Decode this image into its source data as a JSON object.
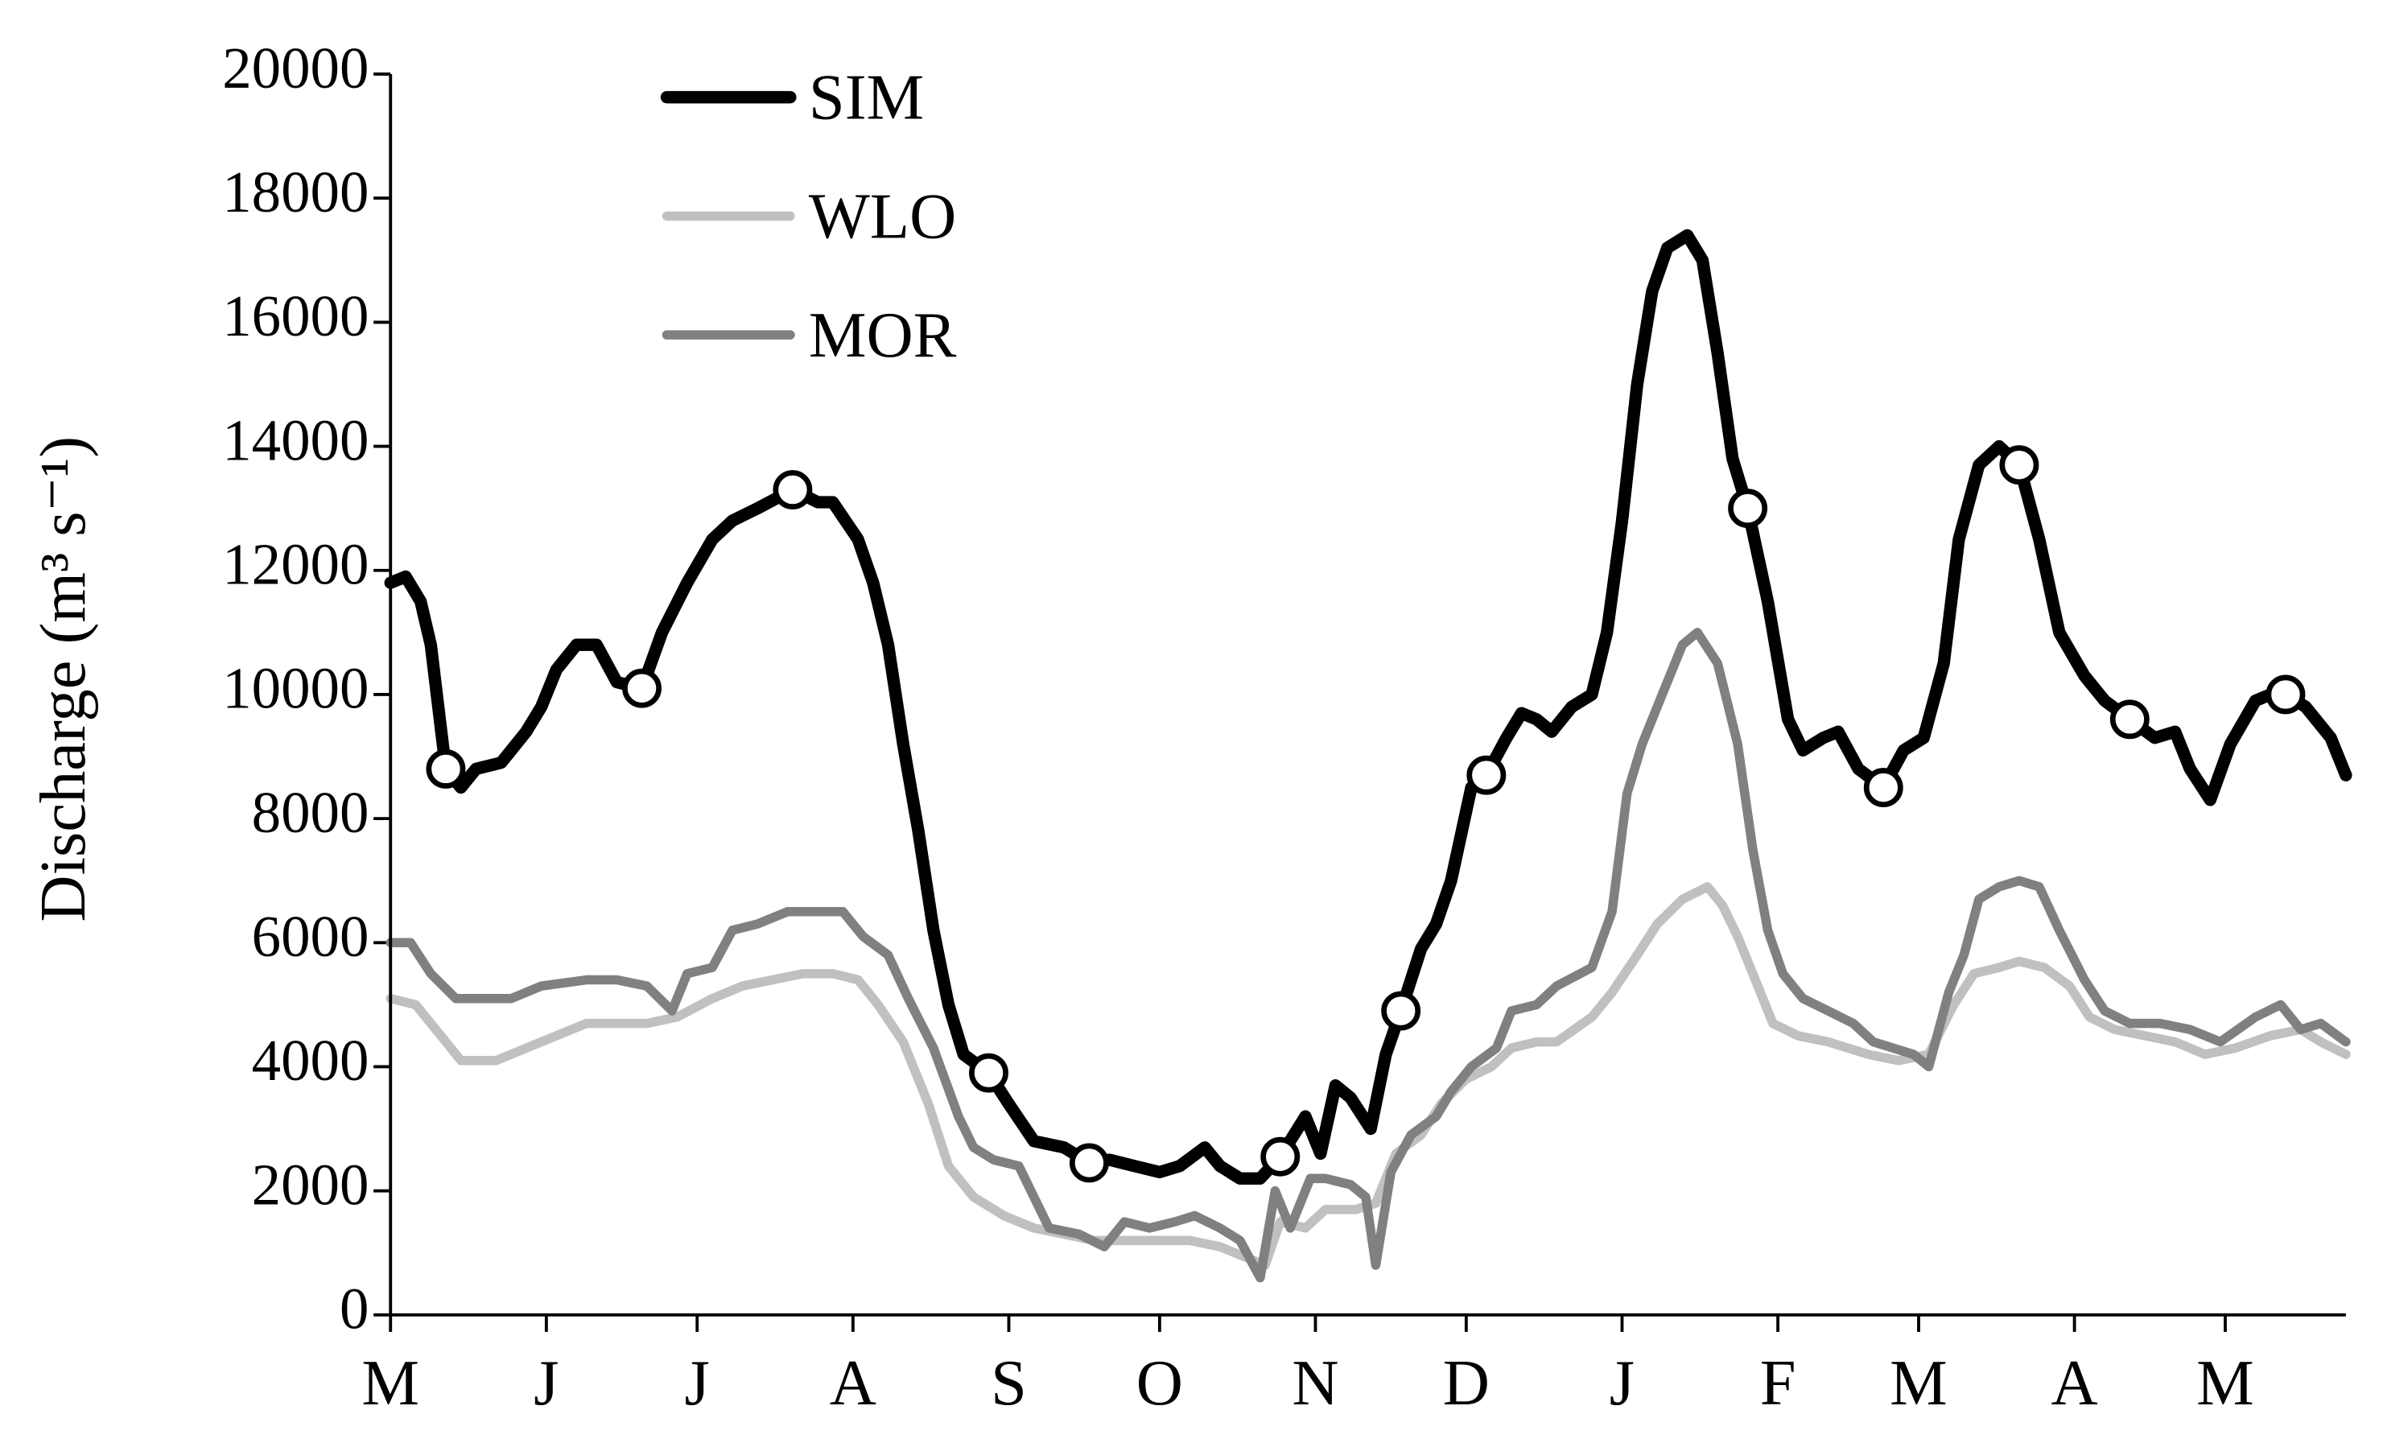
{
  "chart_data": {
    "type": "line",
    "ylabel": "Discharge (m³ s⁻¹)",
    "xlim": [
      0,
      389
    ],
    "xticks": [
      {
        "value": 0,
        "label": "M"
      },
      {
        "value": 31,
        "label": "J"
      },
      {
        "value": 61,
        "label": "J"
      },
      {
        "value": 92,
        "label": "A"
      },
      {
        "value": 123,
        "label": "S"
      },
      {
        "value": 153,
        "label": "O"
      },
      {
        "value": 184,
        "label": "N"
      },
      {
        "value": 214,
        "label": "D"
      },
      {
        "value": 245,
        "label": "J"
      },
      {
        "value": 276,
        "label": "F"
      },
      {
        "value": 304,
        "label": "M"
      },
      {
        "value": 335,
        "label": "A"
      },
      {
        "value": 365,
        "label": "M"
      }
    ],
    "ylim": [
      0,
      20000
    ],
    "yticks": [
      0,
      2000,
      4000,
      6000,
      8000,
      10000,
      12000,
      14000,
      16000,
      18000,
      20000
    ],
    "legend": "upper left",
    "series": [
      {
        "name": "SIM",
        "color": "#000000",
        "x": [
          0,
          3,
          6,
          8,
          11,
          14,
          17,
          22,
          27,
          30,
          33,
          37,
          41,
          45,
          50,
          54,
          59,
          64,
          68,
          73,
          80,
          85,
          88,
          93,
          96,
          99,
          102,
          105,
          108,
          111,
          114,
          119,
          123,
          128,
          134,
          139,
          143,
          148,
          153,
          157,
          162,
          165,
          169,
          173,
          177,
          182,
          185,
          188,
          191,
          195,
          198,
          201,
          205,
          208,
          211,
          215,
          218,
          222,
          225,
          228,
          231,
          235,
          239,
          242,
          245,
          248,
          251,
          254,
          258,
          261,
          264,
          267,
          270,
          274,
          278,
          281,
          285,
          288,
          292,
          297,
          301,
          305,
          309,
          312,
          316,
          320,
          324,
          328,
          332,
          337,
          341,
          346,
          351,
          355,
          358,
          362,
          366,
          371,
          374,
          377,
          381,
          386,
          389
        ],
        "values": [
          11800,
          11900,
          11500,
          10800,
          8800,
          8500,
          8800,
          8900,
          9400,
          9800,
          10400,
          10800,
          10800,
          10200,
          10100,
          11000,
          11800,
          12500,
          12800,
          13000,
          13300,
          13100,
          13100,
          12500,
          11800,
          10800,
          9200,
          7800,
          6200,
          5000,
          4200,
          3900,
          3400,
          2800,
          2700,
          2450,
          2500,
          2400,
          2300,
          2400,
          2700,
          2400,
          2200,
          2200,
          2550,
          3200,
          2600,
          3700,
          3500,
          3000,
          4200,
          4900,
          5900,
          6300,
          7000,
          8500,
          8700,
          9300,
          9700,
          9600,
          9400,
          9800,
          10000,
          11000,
          12800,
          15000,
          16500,
          17200,
          17400,
          17000,
          15500,
          13800,
          13000,
          11500,
          9600,
          9100,
          9300,
          9400,
          8800,
          8500,
          9100,
          9300,
          10500,
          12500,
          13700,
          14000,
          13700,
          12500,
          11000,
          10300,
          9900,
          9600,
          9300,
          9400,
          8800,
          8300,
          9200,
          9900,
          10000,
          10000,
          9800,
          9300,
          8700
        ]
      },
      {
        "name": "WLO",
        "color": "#c0c0c0",
        "x": [
          0,
          5,
          10,
          14,
          21,
          27,
          33,
          39,
          45,
          51,
          57,
          64,
          70,
          76,
          82,
          88,
          93,
          97,
          102,
          107,
          111,
          116,
          122,
          128,
          134,
          140,
          146,
          153,
          159,
          165,
          171,
          174,
          177,
          182,
          186,
          192,
          196,
          200,
          205,
          209,
          214,
          219,
          223,
          228,
          232,
          239,
          243,
          248,
          252,
          257,
          262,
          265,
          268,
          271,
          275,
          280,
          286,
          294,
          300,
          306,
          311,
          315,
          320,
          324,
          329,
          334,
          338,
          343,
          349,
          355,
          361,
          367,
          374,
          380,
          384,
          389
        ],
        "values": [
          5100,
          5000,
          4500,
          4100,
          4100,
          4300,
          4500,
          4700,
          4700,
          4700,
          4800,
          5100,
          5300,
          5400,
          5500,
          5500,
          5400,
          5000,
          4400,
          3400,
          2400,
          1900,
          1600,
          1400,
          1300,
          1200,
          1200,
          1200,
          1200,
          1100,
          900,
          800,
          1500,
          1400,
          1700,
          1700,
          1800,
          2600,
          2900,
          3400,
          3800,
          4000,
          4300,
          4400,
          4400,
          4800,
          5200,
          5800,
          6300,
          6700,
          6900,
          6600,
          6100,
          5500,
          4700,
          4500,
          4400,
          4200,
          4100,
          4200,
          5000,
          5500,
          5600,
          5700,
          5600,
          5300,
          4800,
          4600,
          4500,
          4400,
          4200,
          4300,
          4500,
          4600,
          4400,
          4200
        ]
      },
      {
        "name": "MOR",
        "color": "#808080",
        "x": [
          0,
          4,
          8,
          13,
          17,
          24,
          30,
          39,
          45,
          51,
          56,
          59,
          64,
          68,
          73,
          79,
          85,
          90,
          94,
          99,
          103,
          108,
          113,
          116,
          120,
          125,
          131,
          137,
          142,
          146,
          151,
          156,
          160,
          165,
          169,
          173,
          176,
          179,
          183,
          186,
          191,
          194,
          196,
          199,
          203,
          208,
          211,
          215,
          220,
          223,
          228,
          232,
          239,
          243,
          246,
          249,
          253,
          257,
          260,
          264,
          268,
          271,
          274,
          277,
          281,
          286,
          291,
          295,
          303,
          306,
          310,
          313,
          316,
          320,
          324,
          328,
          332,
          337,
          341,
          346,
          352,
          358,
          364,
          371,
          376,
          380,
          384,
          389
        ],
        "values": [
          6000,
          6000,
          5500,
          5100,
          5100,
          5100,
          5300,
          5400,
          5400,
          5300,
          4900,
          5500,
          5600,
          6200,
          6300,
          6500,
          6500,
          6500,
          6100,
          5800,
          5100,
          4300,
          3200,
          2700,
          2500,
          2400,
          1400,
          1300,
          1100,
          1500,
          1400,
          1500,
          1600,
          1400,
          1200,
          600,
          2000,
          1400,
          2200,
          2200,
          2100,
          1900,
          800,
          2300,
          2900,
          3200,
          3600,
          4000,
          4300,
          4900,
          5000,
          5300,
          5600,
          6500,
          8400,
          9200,
          10000,
          10800,
          11000,
          10500,
          9200,
          7500,
          6200,
          5500,
          5100,
          4900,
          4700,
          4400,
          4200,
          4000,
          5200,
          5800,
          6700,
          6900,
          7000,
          6900,
          6200,
          5400,
          4900,
          4700,
          4700,
          4600,
          4400,
          4800,
          5000,
          4600,
          4700,
          4400
        ]
      }
    ],
    "markers": {
      "series": "SIM",
      "x": [
        11,
        50,
        80,
        119,
        139,
        177,
        201,
        218,
        270,
        297,
        324,
        346,
        377
      ],
      "values": [
        8800,
        10100,
        13300,
        3900,
        2450,
        2550,
        4900,
        8700,
        13000,
        8500,
        13700,
        9600,
        10000
      ]
    }
  }
}
